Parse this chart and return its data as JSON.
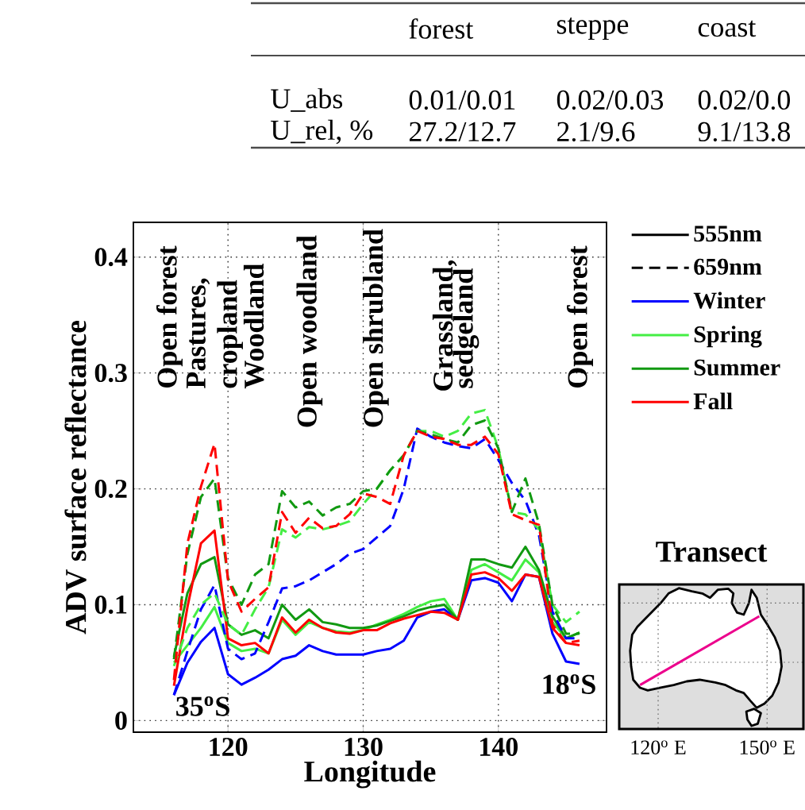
{
  "chart_data": [
    {
      "type": "other",
      "annotations": [
        "forest",
        "steppe",
        "coast",
        "U_abs",
        "0.01/0.01",
        "0.02/0.03",
        "0.02/0.0",
        "U_rel, %",
        "27.2/12.7",
        "2.1/9.6",
        "9.1/13.8"
      ]
    },
    {
      "type": "line",
      "xlabel": "Longitude",
      "ylabel": "ADV surface reflectance",
      "xlim": [
        113,
        148
      ],
      "ylim": [
        -0.01,
        0.43
      ],
      "xticks": [
        120,
        130,
        140
      ],
      "yticks": [
        0,
        0.1,
        0.2,
        0.3,
        0.4
      ],
      "grid": true,
      "legend": "top right",
      "x": [
        116,
        117,
        118,
        119,
        120,
        121,
        122,
        123,
        124,
        125,
        126,
        127,
        128,
        129,
        130,
        131,
        132,
        133,
        134,
        135,
        136,
        137,
        138,
        139,
        140,
        141,
        142,
        143,
        144,
        145,
        146
      ],
      "series": [
        {
          "name": "555nm",
          "color": "#000000",
          "line_style": "solid",
          "values": [
            null,
            null,
            null,
            null,
            null,
            null,
            null,
            null,
            null,
            null,
            null,
            null,
            null,
            null,
            null,
            null,
            null,
            null,
            null,
            null,
            null,
            null,
            null,
            null,
            null,
            null,
            null,
            null,
            null,
            null,
            null
          ]
        },
        {
          "name": "659nm",
          "color": "#000000",
          "line_style": "dashed",
          "values": [
            null,
            null,
            null,
            null,
            null,
            null,
            null,
            null,
            null,
            null,
            null,
            null,
            null,
            null,
            null,
            null,
            null,
            null,
            null,
            null,
            null,
            null,
            null,
            null,
            null,
            null,
            null,
            null,
            null,
            null,
            null
          ]
        },
        {
          "name": "Winter",
          "color": "#0000ff",
          "line_style": "solid",
          "values": [
            0.022,
            0.05,
            0.068,
            0.08,
            0.04,
            0.031,
            0.037,
            0.044,
            0.053,
            0.056,
            0.065,
            0.06,
            0.057,
            0.057,
            0.057,
            0.06,
            0.062,
            0.069,
            0.089,
            0.094,
            0.096,
            0.087,
            0.121,
            0.123,
            0.119,
            0.103,
            0.126,
            0.124,
            0.075,
            0.051,
            0.049
          ]
        },
        {
          "name": "Spring",
          "color": "#44ee44",
          "line_style": "solid",
          "values": [
            0.05,
            0.065,
            0.08,
            0.098,
            0.067,
            0.06,
            0.062,
            0.058,
            0.087,
            0.074,
            0.085,
            0.08,
            0.077,
            0.076,
            0.078,
            0.083,
            0.087,
            0.092,
            0.098,
            0.103,
            0.105,
            0.087,
            0.13,
            0.135,
            0.128,
            0.121,
            0.139,
            0.128,
            0.085,
            0.071,
            0.076
          ]
        },
        {
          "name": "Summer",
          "color": "#119911",
          "line_style": "solid",
          "values": [
            0.055,
            0.11,
            0.135,
            0.141,
            0.083,
            0.074,
            0.078,
            0.071,
            0.1,
            0.087,
            0.096,
            0.085,
            0.083,
            0.08,
            0.08,
            0.082,
            0.086,
            0.09,
            0.095,
            0.098,
            0.1,
            0.087,
            0.139,
            0.139,
            0.135,
            0.132,
            0.15,
            0.13,
            0.09,
            0.071,
            0.076
          ]
        },
        {
          "name": "Fall",
          "color": "#ff0000",
          "line_style": "solid",
          "values": [
            0.03,
            0.098,
            0.153,
            0.164,
            0.071,
            0.065,
            0.067,
            0.058,
            0.089,
            0.076,
            0.087,
            0.08,
            0.076,
            0.075,
            0.078,
            0.078,
            0.084,
            0.088,
            0.091,
            0.094,
            0.093,
            0.087,
            0.126,
            0.128,
            0.123,
            0.112,
            0.126,
            0.124,
            0.08,
            0.067,
            0.065
          ]
        },
        {
          "color": "#0000ff",
          "line_style": "dashed",
          "values": [
            0.022,
            0.06,
            0.096,
            0.117,
            0.062,
            0.053,
            0.058,
            0.085,
            0.114,
            0.116,
            0.121,
            0.128,
            0.135,
            0.144,
            0.148,
            0.158,
            0.168,
            0.2,
            0.252,
            0.245,
            0.24,
            0.237,
            0.235,
            0.243,
            0.225,
            0.205,
            0.19,
            0.16,
            0.094,
            0.071,
            0.071
          ]
        },
        {
          "color": "#44ee44",
          "line_style": "dashed",
          "values": [
            0.047,
            0.08,
            0.1,
            0.11,
            0.083,
            0.074,
            0.096,
            0.115,
            0.165,
            0.158,
            0.167,
            0.165,
            0.168,
            0.172,
            0.187,
            0.2,
            0.216,
            0.229,
            0.25,
            0.25,
            0.245,
            0.25,
            0.265,
            0.268,
            0.235,
            0.18,
            0.178,
            0.165,
            0.1,
            0.085,
            0.094
          ]
        },
        {
          "color": "#119911",
          "line_style": "dashed",
          "values": [
            0.053,
            0.144,
            0.193,
            0.209,
            0.123,
            0.1,
            0.126,
            0.135,
            0.198,
            0.184,
            0.189,
            0.177,
            0.184,
            0.187,
            0.198,
            0.2,
            0.216,
            0.229,
            0.25,
            0.247,
            0.243,
            0.24,
            0.255,
            0.259,
            0.235,
            0.18,
            0.209,
            0.17,
            0.1,
            0.075,
            0.075
          ]
        },
        {
          "color": "#ff0000",
          "line_style": "dashed",
          "values": [
            0.035,
            0.153,
            0.202,
            0.239,
            0.121,
            0.094,
            0.105,
            0.115,
            0.18,
            0.162,
            0.175,
            0.166,
            0.168,
            0.178,
            0.196,
            0.193,
            0.187,
            0.229,
            0.25,
            0.245,
            0.243,
            0.238,
            0.238,
            0.245,
            0.23,
            0.178,
            0.173,
            0.169,
            0.083,
            0.067,
            0.069
          ]
        }
      ],
      "annotations": [
        "Open forest",
        "Pastures,",
        "cropland",
        "Woodland",
        "Open woodland",
        "Open shrubland",
        "Grassland,",
        "sedgeland",
        "Open forest",
        "35$^{o}$S",
        "18$^{o}$S"
      ]
    },
    {
      "type": "other",
      "title": "Transect",
      "annotations": [
        "120$^{o}$ E",
        "150$^{o}$ E"
      ]
    }
  ]
}
